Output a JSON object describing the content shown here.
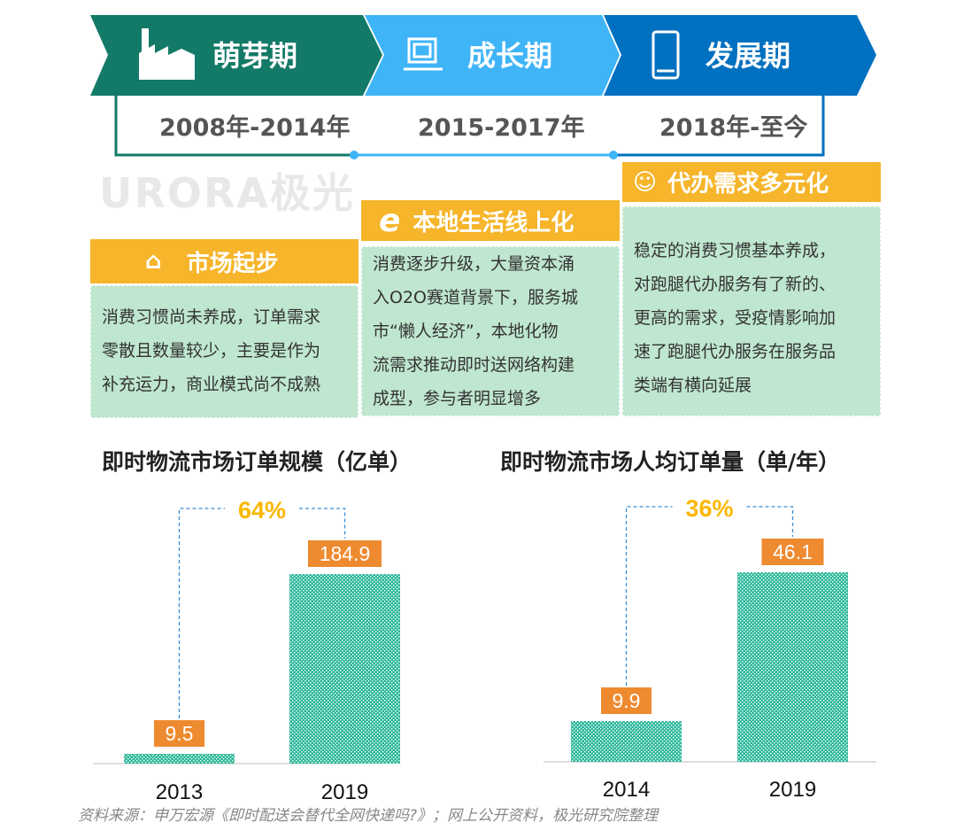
{
  "timeline": {
    "stages": [
      {
        "label": "萌芽期",
        "years": "2008年-2014年",
        "icon": "factory-icon",
        "color": "#137a68"
      },
      {
        "label": "成长期",
        "years": "2015-2017年",
        "icon": "laptop-icon",
        "color": "#3fb4f7"
      },
      {
        "label": "发展期",
        "years": "2018年-至今",
        "icon": "smartphone-icon",
        "color": "#0070c0"
      }
    ]
  },
  "watermark": "URORA极光",
  "cards": [
    {
      "title": "市场起步",
      "icon": "warehouse-icon",
      "lines": [
        "消费习惯尚未养成，订单需求",
        "零散且数量较少，主要是作为",
        "补充运力，商业模式尚不成熟"
      ]
    },
    {
      "title": "本地生活线上化",
      "icon": "internet-explorer-icon",
      "lines": [
        "消费逐步升级，大量资本涌",
        "入O2O赛道背景下，服务城",
        "市“懒人经济”，本地化物",
        "流需求推动即时送网络构建",
        "成型，参与者明显增多"
      ]
    },
    {
      "title": "代办需求多元化",
      "icon": "ai-head-icon",
      "lines": [
        "稳定的消费习惯基本养成，",
        "对跑腿代办服务有了新的、",
        "更高的需求，受疫情影响加",
        "速了跑腿代办服务在服务品",
        "类端有横向延展"
      ]
    }
  ],
  "colors": {
    "accent": "#f6b52a",
    "card_bg": "#bfe6cf",
    "bar": "#2bb89a",
    "label_bg": "#ee8a2f",
    "growth": "#fbb800"
  },
  "chart_data": [
    {
      "type": "bar",
      "title": "即时物流市场订单规模（亿单）",
      "categories": [
        "2013",
        "2019"
      ],
      "values": [
        9.5,
        184.9
      ],
      "data_labels": [
        "9.5",
        "184.9"
      ],
      "growth_label": "64%",
      "xlabel": "",
      "ylabel": "",
      "grid": false
    },
    {
      "type": "bar",
      "title": "即时物流市场人均订单量（单/年）",
      "categories": [
        "2014",
        "2019"
      ],
      "values": [
        9.9,
        46.1
      ],
      "data_labels": [
        "9.9",
        "46.1"
      ],
      "growth_label": "36%",
      "xlabel": "",
      "ylabel": "",
      "grid": false
    }
  ],
  "source": "资料来源：申万宏源《即时配送会替代全网快递吗?》；网上公开资料，极光研究院整理"
}
